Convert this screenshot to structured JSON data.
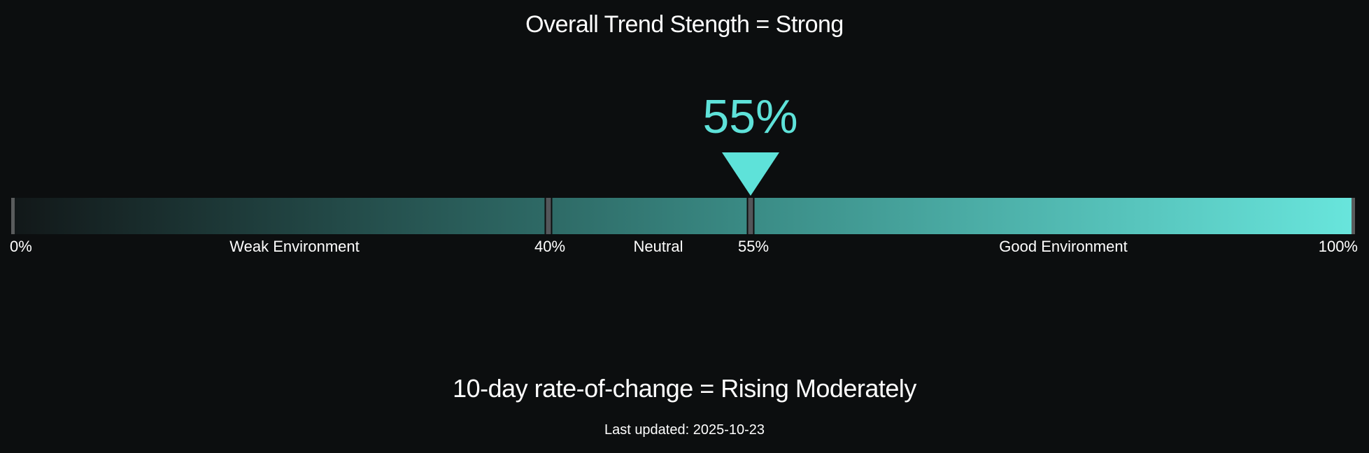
{
  "colors": {
    "background": "#0c0e0f",
    "text": "#ffffff",
    "accent": "#5ee2d9",
    "bar-start": "#121819",
    "bar-40": "#2e6a66",
    "bar-55": "#3a8b85",
    "bar-end": "#68e5dc",
    "tick": "#5a5c5d",
    "divider": "#53565a"
  },
  "header": {
    "title": "Overall Trend Stength = Strong"
  },
  "gauge": {
    "value_label": "55%",
    "value_percent": 55,
    "scale": {
      "start": "0%",
      "weak": "Weak Environment",
      "t40": "40%",
      "neutral": "Neutral",
      "t55": "55%",
      "good": "Good Environment",
      "end": "100%"
    }
  },
  "footer": {
    "subtitle": "10-day rate-of-change = Rising Moderately",
    "last_updated": "Last updated: 2025-10-23"
  },
  "chart_data": {
    "type": "bar",
    "subtype": "linear-gauge",
    "title": "Overall Trend Stength = Strong",
    "value": 55,
    "value_label": "55%",
    "range": [
      0,
      100
    ],
    "ticks": [
      "0%",
      "40%",
      "55%",
      "100%"
    ],
    "zones": [
      {
        "label": "Weak Environment",
        "from": 0,
        "to": 40
      },
      {
        "label": "Neutral",
        "from": 40,
        "to": 55
      },
      {
        "label": "Good Environment",
        "from": 55,
        "to": 100
      }
    ],
    "gradient_stops": [
      {
        "position": 0,
        "color": "#121819"
      },
      {
        "position": 40,
        "color": "#2e6a66"
      },
      {
        "position": 55,
        "color": "#3a8b85"
      },
      {
        "position": 100,
        "color": "#68e5dc"
      }
    ],
    "marker": {
      "shape": "triangle-down",
      "position": 55,
      "color": "#5ee2d9"
    },
    "legend_position": "none",
    "grid": false,
    "annotations": [
      "10-day rate-of-change = Rising Moderately",
      "Last updated: 2025-10-23"
    ]
  }
}
